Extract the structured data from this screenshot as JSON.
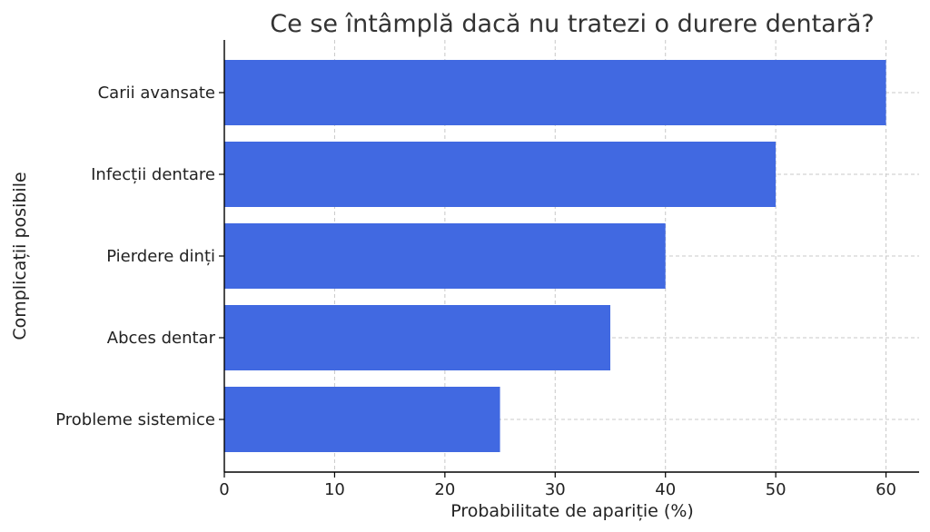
{
  "chart_data": {
    "type": "bar",
    "orientation": "horizontal",
    "title": "Ce se întâmplă dacă nu tratezi o durere dentară?",
    "xlabel": "Probabilitate de apariție (%)",
    "ylabel": "Complicații posibile",
    "categories": [
      "Carii avansate",
      "Infecții dentare",
      "Pierdere dinți",
      "Abces dentar",
      "Probleme sistemice"
    ],
    "values": [
      60,
      50,
      40,
      35,
      25
    ],
    "xlim": [
      0,
      63
    ],
    "xticks": [
      0,
      10,
      20,
      30,
      40,
      50,
      60
    ],
    "grid": true,
    "bar_color": "#4169e1"
  }
}
